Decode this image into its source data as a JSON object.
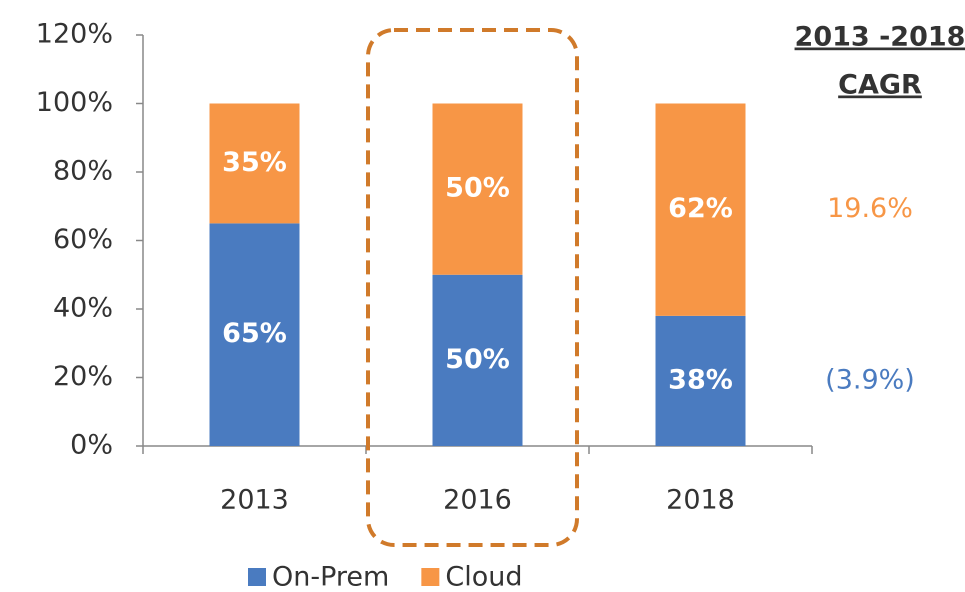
{
  "chart_data": {
    "type": "stacked_bar",
    "categories": [
      "2013",
      "2016",
      "2018"
    ],
    "series": [
      {
        "name": "On-Prem",
        "color": "#4a7bc0",
        "values": [
          65,
          50,
          38
        ],
        "value_labels": [
          "65%",
          "50%",
          "38%"
        ]
      },
      {
        "name": "Cloud",
        "color": "#f79646",
        "values": [
          35,
          50,
          62
        ],
        "value_labels": [
          "35%",
          "50%",
          "62%"
        ]
      }
    ],
    "ylim": [
      0,
      120
    ],
    "yticks": [
      {
        "value": 0,
        "label": "0%"
      },
      {
        "value": 20,
        "label": "20%"
      },
      {
        "value": 40,
        "label": "40%"
      },
      {
        "value": 60,
        "label": "60%"
      },
      {
        "value": 80,
        "label": "80%"
      },
      {
        "value": 100,
        "label": "100%"
      },
      {
        "value": 120,
        "label": "120%"
      }
    ],
    "grid": false,
    "legend": "bottom",
    "highlight_category": 1,
    "cagr": {
      "header": [
        "2013 -2018",
        "CAGR"
      ],
      "values": [
        "(3.9%)",
        "19.6%"
      ]
    }
  }
}
